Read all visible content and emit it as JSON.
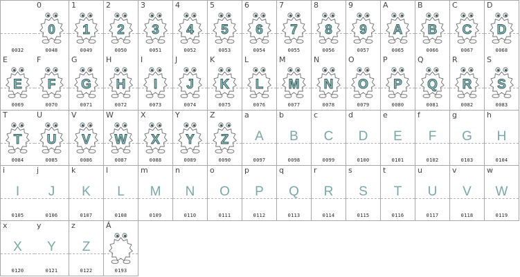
{
  "colors": {
    "border": "#a8a8a8",
    "glyph_fill": "#8fbcbc",
    "glyph_stroke": "#2f5a5a",
    "badge_stroke": "#6a6a6a",
    "plain_glyph": "#7aa8a8"
  },
  "cells": [
    {
      "char": "",
      "code": "0032",
      "badge": false
    },
    {
      "char": "0",
      "code": "0048",
      "badge": true
    },
    {
      "char": "1",
      "code": "0049",
      "badge": true
    },
    {
      "char": "2",
      "code": "0050",
      "badge": true
    },
    {
      "char": "3",
      "code": "0051",
      "badge": true
    },
    {
      "char": "4",
      "code": "0052",
      "badge": true
    },
    {
      "char": "5",
      "code": "0053",
      "badge": true
    },
    {
      "char": "6",
      "code": "0054",
      "badge": true
    },
    {
      "char": "7",
      "code": "0055",
      "badge": true
    },
    {
      "char": "8",
      "code": "0056",
      "badge": true
    },
    {
      "char": "9",
      "code": "0057",
      "badge": true
    },
    {
      "char": "A",
      "code": "0065",
      "badge": true
    },
    {
      "char": "B",
      "code": "0066",
      "badge": true
    },
    {
      "char": "C",
      "code": "0067",
      "badge": true
    },
    {
      "char": "D",
      "code": "0068",
      "badge": true
    },
    {
      "char": "E",
      "code": "0069",
      "badge": true
    },
    {
      "char": "F",
      "code": "0070",
      "badge": true
    },
    {
      "char": "G",
      "code": "0071",
      "badge": true
    },
    {
      "char": "H",
      "code": "0072",
      "badge": true
    },
    {
      "char": "I",
      "code": "0073",
      "badge": true
    },
    {
      "char": "J",
      "code": "0074",
      "badge": true
    },
    {
      "char": "K",
      "code": "0075",
      "badge": true
    },
    {
      "char": "L",
      "code": "0076",
      "badge": true
    },
    {
      "char": "M",
      "code": "0077",
      "badge": true
    },
    {
      "char": "N",
      "code": "0078",
      "badge": true
    },
    {
      "char": "O",
      "code": "0079",
      "badge": true
    },
    {
      "char": "P",
      "code": "0080",
      "badge": true
    },
    {
      "char": "Q",
      "code": "0081",
      "badge": true
    },
    {
      "char": "R",
      "code": "0082",
      "badge": true
    },
    {
      "char": "S",
      "code": "0083",
      "badge": true
    },
    {
      "char": "T",
      "code": "0084",
      "badge": true
    },
    {
      "char": "U",
      "code": "0085",
      "badge": true
    },
    {
      "char": "V",
      "code": "0086",
      "badge": true
    },
    {
      "char": "W",
      "code": "0087",
      "badge": true
    },
    {
      "char": "X",
      "code": "0088",
      "badge": true
    },
    {
      "char": "Y",
      "code": "0089",
      "badge": true
    },
    {
      "char": "Z",
      "code": "0090",
      "badge": true
    },
    {
      "char": "a",
      "glyph": "A",
      "code": "0097",
      "badge": false
    },
    {
      "char": "b",
      "glyph": "B",
      "code": "0098",
      "badge": false
    },
    {
      "char": "c",
      "glyph": "C",
      "code": "0099",
      "badge": false
    },
    {
      "char": "d",
      "glyph": "D",
      "code": "0100",
      "badge": false
    },
    {
      "char": "e",
      "glyph": "E",
      "code": "0101",
      "badge": false
    },
    {
      "char": "f",
      "glyph": "F",
      "code": "0102",
      "badge": false
    },
    {
      "char": "g",
      "glyph": "G",
      "code": "0103",
      "badge": false
    },
    {
      "char": "h",
      "glyph": "H",
      "code": "0104",
      "badge": false
    },
    {
      "char": "i",
      "glyph": "I",
      "code": "0105",
      "badge": false
    },
    {
      "char": "j",
      "glyph": "J",
      "code": "0106",
      "badge": false
    },
    {
      "char": "k",
      "glyph": "K",
      "code": "0107",
      "badge": false
    },
    {
      "char": "l",
      "glyph": "L",
      "code": "0108",
      "badge": false
    },
    {
      "char": "m",
      "glyph": "M",
      "code": "0109",
      "badge": false
    },
    {
      "char": "n",
      "glyph": "N",
      "code": "0110",
      "badge": false
    },
    {
      "char": "o",
      "glyph": "O",
      "code": "0111",
      "badge": false
    },
    {
      "char": "p",
      "glyph": "P",
      "code": "0112",
      "badge": false
    },
    {
      "char": "q",
      "glyph": "Q",
      "code": "0113",
      "badge": false
    },
    {
      "char": "r",
      "glyph": "R",
      "code": "0114",
      "badge": false
    },
    {
      "char": "s",
      "glyph": "S",
      "code": "0115",
      "badge": false
    },
    {
      "char": "t",
      "glyph": "T",
      "code": "0116",
      "badge": false
    },
    {
      "char": "u",
      "glyph": "U",
      "code": "0117",
      "badge": false
    },
    {
      "char": "v",
      "glyph": "V",
      "code": "0118",
      "badge": false
    },
    {
      "char": "w",
      "glyph": "W",
      "code": "0119",
      "badge": false
    },
    {
      "char": "x",
      "glyph": "X",
      "code": "0120",
      "badge": false
    },
    {
      "char": "y",
      "glyph": "Y",
      "code": "0121",
      "badge": false
    },
    {
      "char": "z",
      "glyph": "Z",
      "code": "0122",
      "badge": false
    },
    {
      "char": "Á",
      "glyph": "",
      "code": "0193",
      "badge": true
    }
  ]
}
